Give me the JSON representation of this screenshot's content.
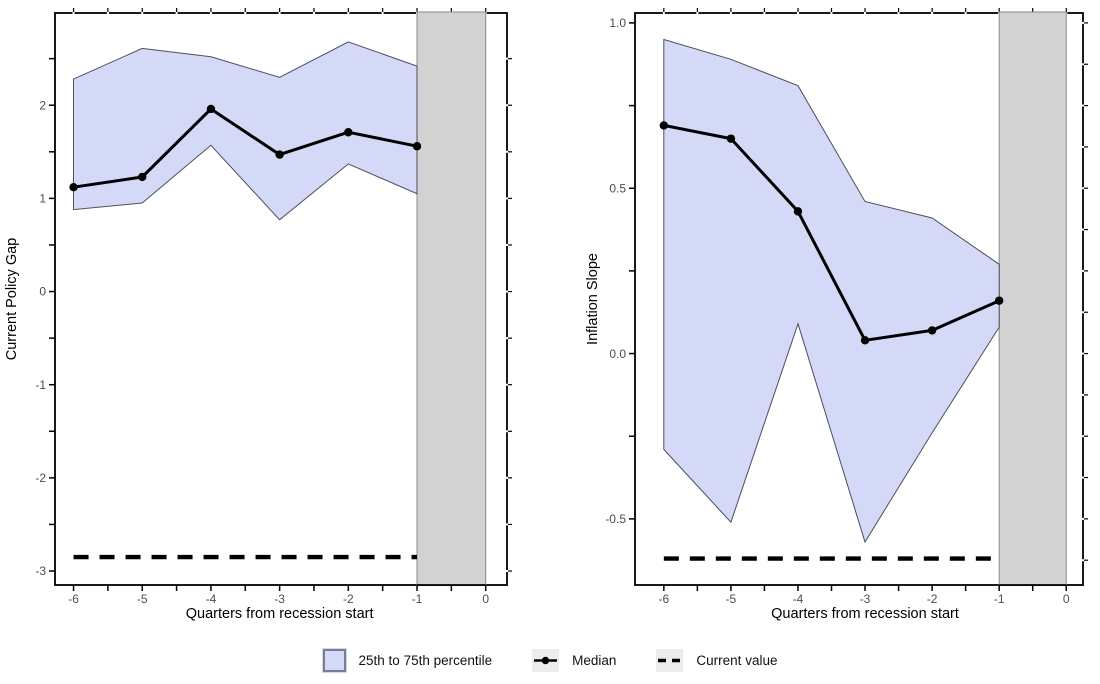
{
  "figure": {
    "background": "#ffffff",
    "legend": [
      {
        "key": "ribbon-swatch",
        "label": "25th to 75th percentile"
      },
      {
        "key": "median-line-with-point",
        "label": "Median"
      },
      {
        "key": "dashed-line",
        "label": "Current value"
      }
    ],
    "colors": {
      "ribbon_fill": "#d3d9f7",
      "ribbon_edge": "#4a4f5c",
      "swatch_edge": "#767d96",
      "median_line": "#000000",
      "current_value_line": "#000000",
      "recession_band_fill": "#d2d2d2",
      "recession_band_edge": "#8a8a8a",
      "panel_border": "#000000",
      "tick_label_text": "#4d4d4d",
      "axis_title_text": "#000000",
      "legend_key_bg": "#ececec"
    }
  },
  "chart_data": [
    {
      "name": "current-policy-gap",
      "type": "line",
      "title": "",
      "xlabel": "Quarters from recession start",
      "ylabel": "Current Policy Gap",
      "x": [
        -6,
        -5,
        -4,
        -3,
        -2,
        -1
      ],
      "series": [
        {
          "name": "Median",
          "values": [
            1.12,
            1.23,
            1.96,
            1.47,
            1.71,
            1.56
          ]
        },
        {
          "name": "75th percentile (ribbon upper)",
          "values": [
            2.28,
            2.61,
            2.52,
            2.3,
            2.68,
            2.42
          ]
        },
        {
          "name": "25th percentile (ribbon lower)",
          "values": [
            0.88,
            0.95,
            1.57,
            0.77,
            1.37,
            1.05
          ]
        }
      ],
      "current_value": -2.85,
      "recession_band_x": [
        -1,
        0
      ],
      "x_ticks": {
        "values": [
          -6,
          -5,
          -4,
          -3,
          -2,
          -1,
          0
        ],
        "labels": [
          "-6",
          "-5",
          "-4",
          "-3",
          "-2",
          "-1",
          "0"
        ]
      },
      "y_ticks": {
        "values": [
          2,
          1,
          0,
          -1,
          -2,
          -3
        ],
        "labels": [
          "2",
          "1",
          "0",
          "-1",
          "-2",
          "-3"
        ]
      },
      "xlim": [
        -6.27,
        0.31
      ],
      "ylim": [
        -3.15,
        2.99
      ],
      "grid": false,
      "legend_position": "bottom"
    },
    {
      "name": "inflation-slope",
      "type": "line",
      "title": "",
      "xlabel": "Quarters from recession start",
      "ylabel": "Inflation Slope",
      "x": [
        -6,
        -5,
        -4,
        -3,
        -2,
        -1
      ],
      "series": [
        {
          "name": "Median",
          "values": [
            0.69,
            0.65,
            0.43,
            0.04,
            0.07,
            0.16
          ]
        },
        {
          "name": "75th percentile (ribbon upper)",
          "values": [
            0.95,
            0.89,
            0.81,
            0.46,
            0.41,
            0.27
          ]
        },
        {
          "name": "25th percentile (ribbon lower)",
          "values": [
            -0.29,
            -0.51,
            0.09,
            -0.57,
            -0.24,
            0.08
          ]
        }
      ],
      "current_value": -0.62,
      "recession_band_x": [
        -1,
        0
      ],
      "x_ticks": {
        "values": [
          -6,
          -5,
          -4,
          -3,
          -2,
          -1,
          0
        ],
        "labels": [
          "-6",
          "-5",
          "-4",
          "-3",
          "-2",
          "-1",
          "0"
        ]
      },
      "y_ticks": {
        "values": [
          1.0,
          0.5,
          0.0,
          -0.5
        ],
        "labels": [
          "1.0",
          "0.5",
          "0.0",
          "-0.5"
        ]
      },
      "xlim": [
        -6.43,
        0.25
      ],
      "ylim": [
        -0.7,
        1.03
      ],
      "grid": false,
      "legend_position": "bottom"
    }
  ]
}
